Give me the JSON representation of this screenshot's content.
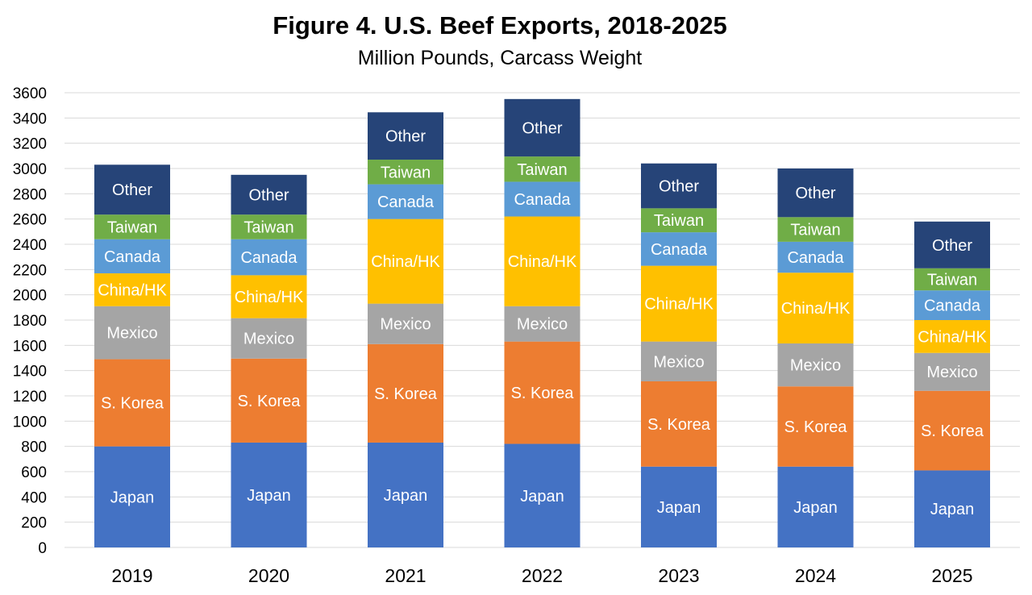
{
  "chart_data": {
    "type": "bar",
    "stacked": true,
    "title": "Figure 4. U.S. Beef Exports, 2018-2025",
    "subtitle": "Million Pounds, Carcass Weight",
    "xlabel": "",
    "ylabel": "",
    "ylim": [
      0,
      3600
    ],
    "yticks": [
      0,
      200,
      400,
      600,
      800,
      1000,
      1200,
      1400,
      1600,
      1800,
      2000,
      2200,
      2400,
      2600,
      2800,
      3000,
      3200,
      3400,
      3600
    ],
    "grid": true,
    "legend": "none",
    "categories": [
      "2019",
      "2020",
      "2021",
      "2022",
      "2023",
      "2024",
      "2025"
    ],
    "series": [
      {
        "name": "Japan",
        "color": "#4472C4",
        "values": [
          800,
          830,
          830,
          820,
          640,
          640,
          610
        ]
      },
      {
        "name": "S. Korea",
        "color": "#ED7D31",
        "values": [
          690,
          665,
          780,
          810,
          675,
          635,
          630
        ]
      },
      {
        "name": "Mexico",
        "color": "#A5A5A5",
        "values": [
          420,
          320,
          320,
          280,
          315,
          340,
          300
        ]
      },
      {
        "name": "China/HK",
        "color": "#FFC000",
        "values": [
          260,
          340,
          670,
          710,
          600,
          560,
          260
        ]
      },
      {
        "name": "Canada",
        "color": "#5B9BD5",
        "values": [
          270,
          285,
          275,
          275,
          265,
          245,
          235
        ]
      },
      {
        "name": "Taiwan",
        "color": "#70AD47",
        "values": [
          195,
          195,
          195,
          200,
          190,
          195,
          175
        ]
      },
      {
        "name": "Other",
        "color": "#264478",
        "values": [
          395,
          315,
          375,
          455,
          355,
          385,
          370
        ]
      }
    ]
  }
}
